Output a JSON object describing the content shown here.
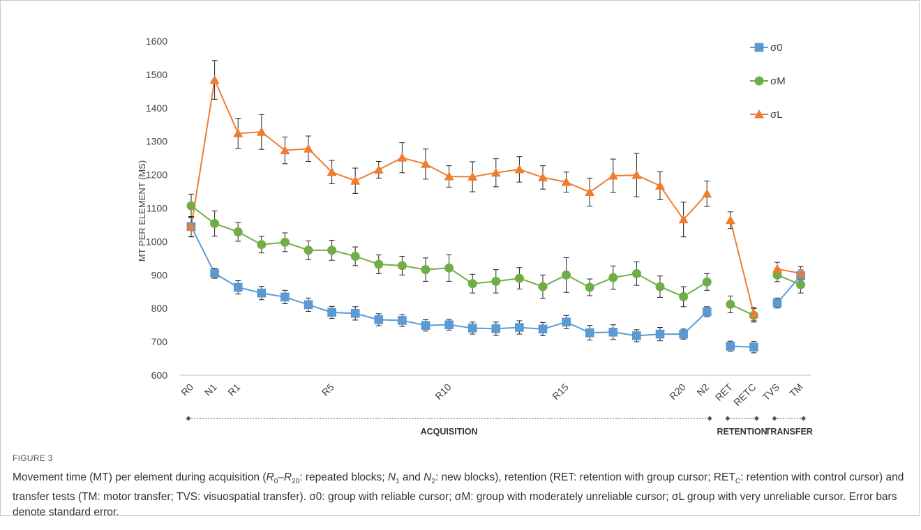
{
  "chart_data": {
    "type": "line",
    "ylabel": "MT PER ELEMENT (MS)",
    "ylim": [
      600,
      1600
    ],
    "yticks": [
      600,
      700,
      800,
      900,
      1000,
      1100,
      1200,
      1300,
      1400,
      1500,
      1600
    ],
    "x_labels": [
      {
        "index": 0,
        "text": "R0"
      },
      {
        "index": 1,
        "text": "N1"
      },
      {
        "index": 2,
        "text": "R1"
      },
      {
        "index": 6,
        "text": "R5"
      },
      {
        "index": 11,
        "text": "R10"
      },
      {
        "index": 16,
        "text": "R15"
      },
      {
        "index": 21,
        "text": "R20"
      },
      {
        "index": 22,
        "text": "N2"
      },
      {
        "index": 23,
        "text": "RET"
      },
      {
        "index": 24,
        "text": "RETC"
      },
      {
        "index": 25,
        "text": "TVS"
      },
      {
        "index": 26,
        "text": "TM"
      }
    ],
    "segments": [
      [
        0,
        22
      ],
      [
        23,
        24
      ],
      [
        25,
        26
      ]
    ],
    "phases": [
      {
        "label": "ACQUISITION",
        "start": 0,
        "end": 22
      },
      {
        "label": "RETENTION",
        "start": 23,
        "end": 24
      },
      {
        "label": "TRANSFER",
        "start": 25,
        "end": 26
      }
    ],
    "legend_position": "top-right",
    "series": [
      {
        "name": "σ0",
        "color": "#5b9bd5",
        "marker": "square",
        "values": [
          1045,
          905,
          863,
          846,
          834,
          811,
          788,
          785,
          766,
          764,
          749,
          751,
          741,
          739,
          743,
          738,
          759,
          727,
          729,
          718,
          723,
          723,
          790,
          687,
          684,
          816,
          898
        ],
        "errors": [
          30,
          15,
          20,
          20,
          20,
          20,
          18,
          20,
          18,
          18,
          17,
          16,
          18,
          20,
          20,
          20,
          20,
          22,
          22,
          18,
          20,
          15,
          15,
          15,
          17,
          15,
          17
        ]
      },
      {
        "name": "σM",
        "color": "#70ad47",
        "marker": "circle",
        "values": [
          1107,
          1054,
          1029,
          991,
          998,
          974,
          974,
          956,
          932,
          928,
          916,
          921,
          874,
          881,
          890,
          865,
          900,
          863,
          892,
          904,
          865,
          835,
          879,
          812,
          779,
          900,
          871
        ],
        "errors": [
          35,
          38,
          28,
          25,
          28,
          28,
          30,
          28,
          28,
          28,
          35,
          40,
          28,
          35,
          32,
          35,
          52,
          25,
          35,
          35,
          32,
          30,
          25,
          25,
          20,
          20,
          25
        ]
      },
      {
        "name": "σL",
        "color": "#ed7d31",
        "marker": "triangle",
        "values": [
          1044,
          1484,
          1324,
          1328,
          1273,
          1278,
          1208,
          1182,
          1215,
          1251,
          1232,
          1195,
          1194,
          1206,
          1216,
          1192,
          1178,
          1148,
          1197,
          1199,
          1167,
          1066,
          1143,
          1064,
          783,
          918,
          905
        ],
        "errors": [
          30,
          58,
          45,
          52,
          40,
          38,
          35,
          38,
          25,
          45,
          45,
          32,
          45,
          42,
          38,
          35,
          30,
          42,
          50,
          65,
          42,
          52,
          38,
          25,
          20,
          20,
          20
        ]
      }
    ]
  },
  "caption": {
    "figure_label": "FIGURE 3",
    "text": "Movement time (MT) per element during acquisition (R0–R20: repeated blocks; N1 and N2: new blocks), retention (RET: retention with group cursor; RETC: retention with control cursor) and transfer tests (TM: motor transfer; TVS: visuospatial transfer). σ0: group with reliable cursor; σM: group with moderately unreliable cursor; σL group with very unreliable cursor. Error bars denote standard error."
  }
}
